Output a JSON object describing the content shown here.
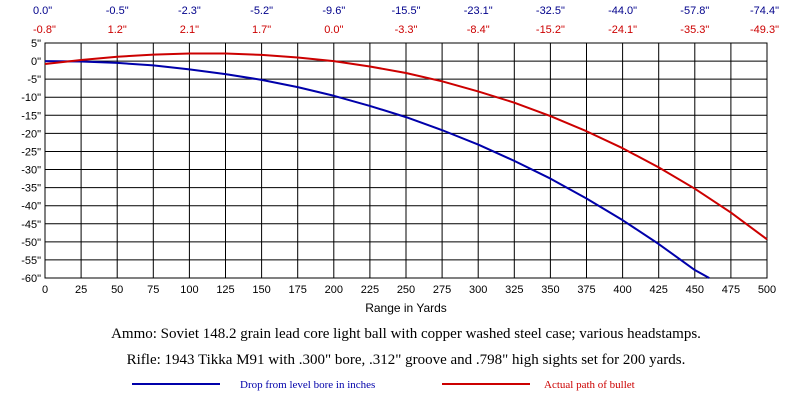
{
  "chart_data": {
    "type": "line",
    "xlabel": "Range in Yards",
    "ylabel": "",
    "x": [
      0,
      25,
      50,
      75,
      100,
      125,
      150,
      175,
      200,
      225,
      250,
      275,
      300,
      325,
      350,
      375,
      400,
      425,
      450,
      475,
      500
    ],
    "x_ticks": [
      "0",
      "25",
      "50",
      "75",
      "100",
      "125",
      "150",
      "175",
      "200",
      "225",
      "250",
      "275",
      "300",
      "325",
      "350",
      "375",
      "400",
      "425",
      "450",
      "475",
      "500"
    ],
    "y_ticks": [
      "5\"",
      "0\"",
      "-5\"",
      "-10\"",
      "-15\"",
      "-20\"",
      "-25\"",
      "-30\"",
      "-35\"",
      "-40\"",
      "-45\"",
      "-50\"",
      "-55\"",
      "-60\""
    ],
    "y_tick_values": [
      5,
      0,
      -5,
      -10,
      -15,
      -20,
      -25,
      -30,
      -35,
      -40,
      -45,
      -50,
      -55,
      -60
    ],
    "xlim": [
      0,
      500
    ],
    "ylim": [
      -60,
      5
    ],
    "grid": true,
    "top_labels_x": [
      0,
      50,
      100,
      150,
      200,
      250,
      300,
      350,
      400,
      450,
      500
    ],
    "top_drop_labels": [
      "0.0\"",
      "-0.5\"",
      "-2.3\"",
      "-5.2\"",
      "-9.6\"",
      "-15.5\"",
      "-23.1\"",
      "-32.5\"",
      "-44.0\"",
      "-57.8\"",
      "-74.4\""
    ],
    "top_path_labels": [
      "-0.8\"",
      "1.2\"",
      "2.1\"",
      "1.7\"",
      "0.0\"",
      "-3.3\"",
      "-8.4\"",
      "-15.2\"",
      "-24.1\"",
      "-35.3\"",
      "-49.3\""
    ],
    "series": [
      {
        "name": "Drop from level bore in inches",
        "color": "#0000aa",
        "x": [
          0,
          25,
          50,
          75,
          100,
          125,
          150,
          175,
          200,
          225,
          250,
          275,
          300,
          325,
          350,
          375,
          400,
          425,
          450,
          460
        ],
        "values": [
          0.0,
          -0.1,
          -0.5,
          -1.2,
          -2.3,
          -3.6,
          -5.2,
          -7.2,
          -9.6,
          -12.4,
          -15.5,
          -19.1,
          -23.1,
          -27.6,
          -32.5,
          -38.0,
          -44.0,
          -50.6,
          -57.8,
          -60.0
        ]
      },
      {
        "name": "Actual path of bullet",
        "color": "#cc0000",
        "x": [
          0,
          25,
          50,
          75,
          100,
          125,
          150,
          175,
          200,
          225,
          250,
          275,
          300,
          325,
          350,
          375,
          400,
          425,
          450,
          475,
          500
        ],
        "values": [
          -0.8,
          0.3,
          1.2,
          1.8,
          2.1,
          2.1,
          1.7,
          1.0,
          0.0,
          -1.5,
          -3.3,
          -5.6,
          -8.4,
          -11.5,
          -15.2,
          -19.4,
          -24.1,
          -29.4,
          -35.3,
          -41.9,
          -49.3
        ]
      }
    ]
  },
  "captions": {
    "ammo": "Ammo:  Soviet 148.2 grain lead core light ball with copper washed steel case; various headstamps.",
    "rifle": "Rifle:  1943 Tikka M91 with .300\" bore, .312\" groove and .798\" high sights set for 200 yards."
  }
}
